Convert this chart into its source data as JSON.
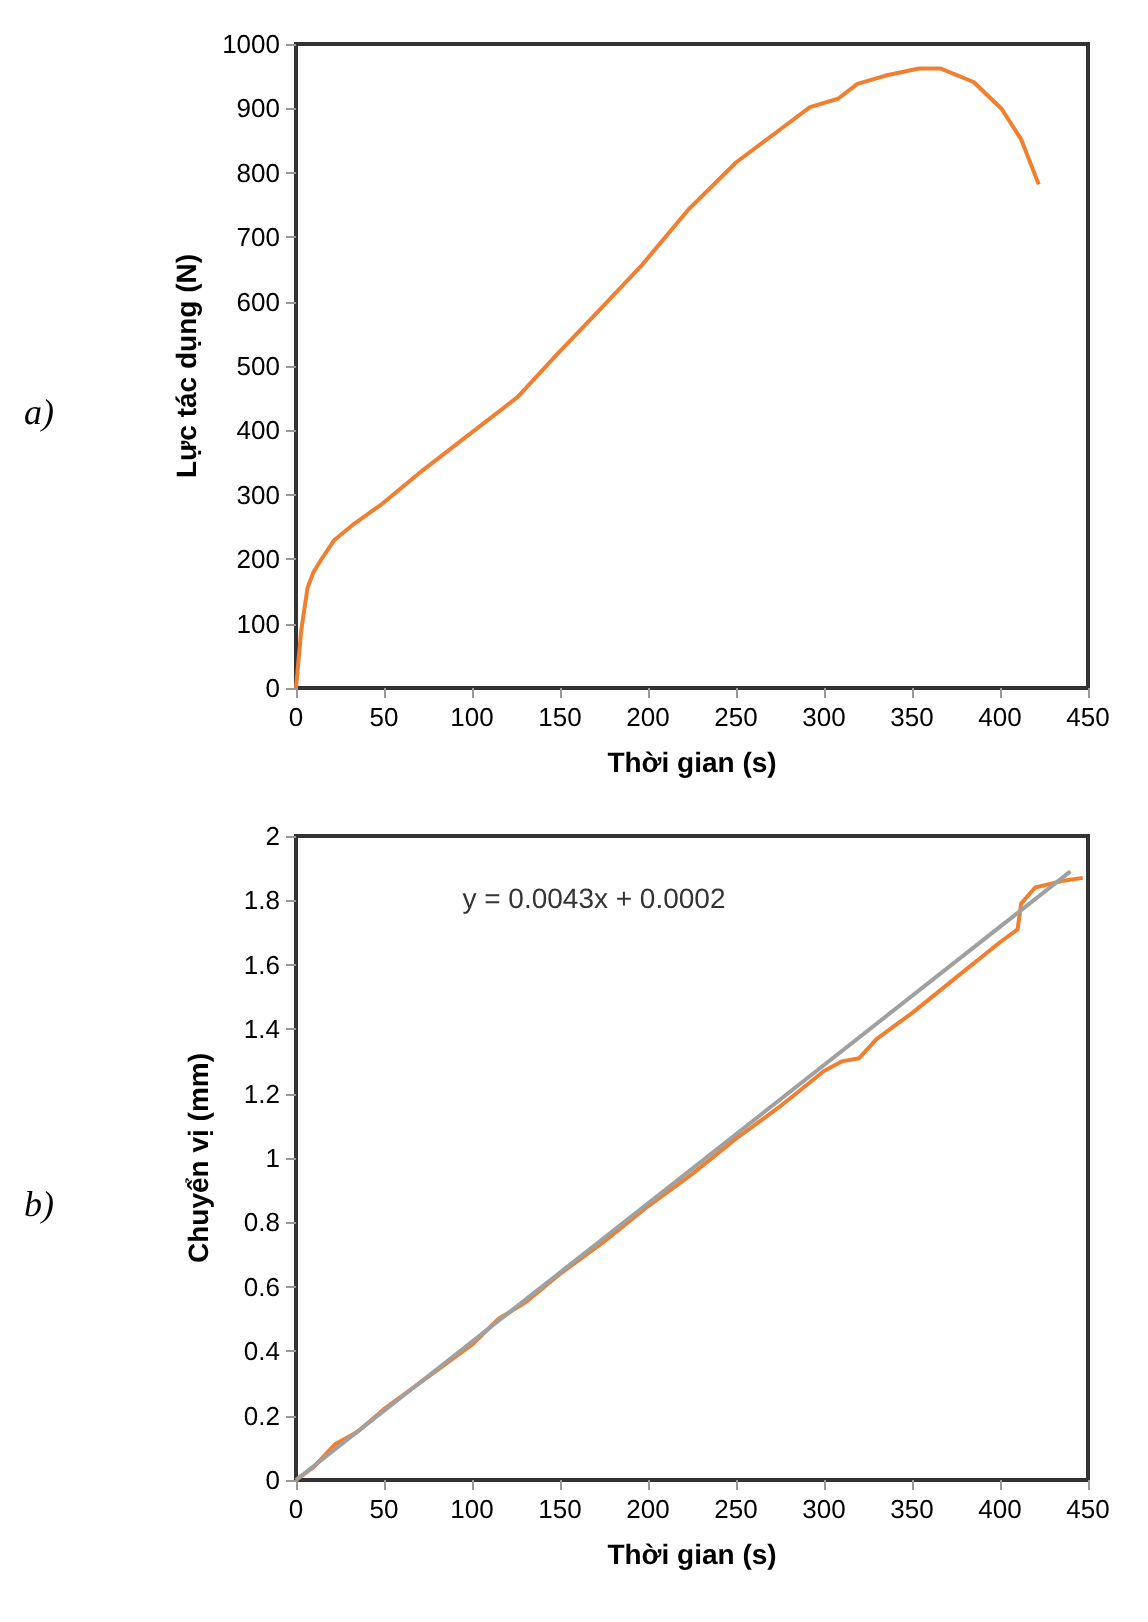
{
  "chart_data": [
    {
      "type": "line",
      "xlabel": "Thời gian (s)",
      "ylabel": "Lực tác dụng (N)",
      "annotations": [
        "a)"
      ],
      "xlim": [
        0,
        450
      ],
      "xticks": [
        0,
        50,
        100,
        150,
        200,
        250,
        300,
        350,
        400,
        450
      ],
      "ylim": [
        0,
        1000
      ],
      "yticks": [
        0,
        100,
        200,
        300,
        400,
        500,
        600,
        700,
        800,
        900,
        1000
      ],
      "marker": "none",
      "series": [
        {
          "color": "#f07f30",
          "x": [
            0,
            3,
            6.6,
            10,
            14,
            21.5,
            33,
            49,
            72,
            99,
            126,
            149,
            169,
            196,
            223,
            250,
            273,
            292,
            308,
            319,
            335,
            354,
            366,
            385,
            401,
            412,
            422
          ],
          "values": [
            0,
            90,
            156,
            180,
            198,
            229,
            255,
            286,
            338,
            395,
            452,
            520,
            577,
            655,
            743,
            816,
            863,
            902,
            915,
            938,
            951,
            962,
            962,
            941,
            899,
            852,
            782
          ]
        }
      ]
    },
    {
      "type": "line",
      "xlabel": "Thời gian (s)",
      "ylabel": "Chuyển vị (mm)",
      "annotations": [
        "b)",
        "y = 0.0043x + 0.0002"
      ],
      "xlim": [
        0,
        450
      ],
      "xticks": [
        0,
        50,
        100,
        150,
        200,
        250,
        300,
        350,
        400,
        450
      ],
      "ylim": [
        0,
        2
      ],
      "yticks": [
        0,
        0.2,
        0.4,
        0.6,
        0.8,
        1,
        1.2,
        1.4,
        1.6,
        1.8,
        2
      ],
      "marker": "none",
      "series": [
        {
          "color": "#f07f30",
          "x": [
            0,
            10,
            22,
            35,
            50,
            75,
            100,
            115,
            130,
            150,
            175,
            200,
            225,
            250,
            275,
            300,
            310,
            320,
            330,
            350,
            375,
            400,
            410,
            412,
            420,
            435,
            447
          ],
          "values": [
            0,
            0.04,
            0.11,
            0.15,
            0.22,
            0.32,
            0.42,
            0.5,
            0.55,
            0.64,
            0.74,
            0.85,
            0.95,
            1.06,
            1.16,
            1.27,
            1.3,
            1.31,
            1.37,
            1.45,
            1.56,
            1.67,
            1.71,
            1.79,
            1.84,
            1.86,
            1.87
          ]
        },
        {
          "color": "#a0a0a0",
          "x": [
            0,
            440
          ],
          "values": [
            0,
            1.89
          ]
        }
      ]
    }
  ]
}
